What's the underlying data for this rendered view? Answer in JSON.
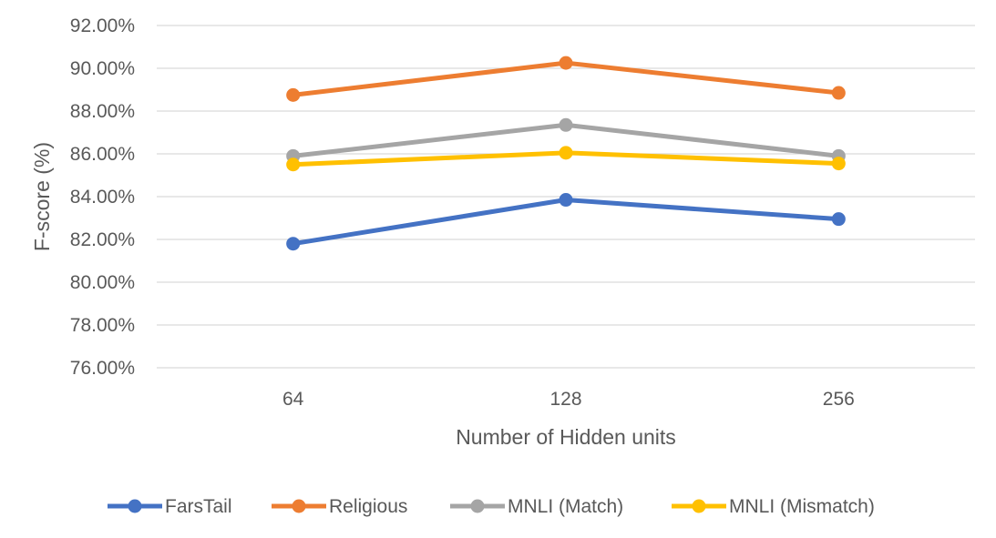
{
  "chart_data": {
    "type": "line",
    "title": "",
    "xlabel": "Number of Hidden units",
    "ylabel": "F-score (%)",
    "categories": [
      "64",
      "128",
      "256"
    ],
    "ylim": [
      76,
      92
    ],
    "ytick_step": 2,
    "ytick_labels": [
      "76.00%",
      "78.00%",
      "80.00%",
      "82.00%",
      "84.00%",
      "86.00%",
      "88.00%",
      "90.00%",
      "92.00%"
    ],
    "grid": true,
    "legend_position": "bottom",
    "series": [
      {
        "name": "FarsTail",
        "color": "#4472C4",
        "values": [
          81.8,
          83.85,
          82.95
        ]
      },
      {
        "name": "Religious",
        "color": "#ED7D31",
        "values": [
          88.75,
          90.25,
          88.85
        ]
      },
      {
        "name": "MNLI (Match)",
        "color": "#A5A5A5",
        "values": [
          85.9,
          87.35,
          85.9
        ]
      },
      {
        "name": "MNLI (Mismatch)",
        "color": "#FFC000",
        "values": [
          85.5,
          86.05,
          85.55
        ]
      }
    ]
  }
}
